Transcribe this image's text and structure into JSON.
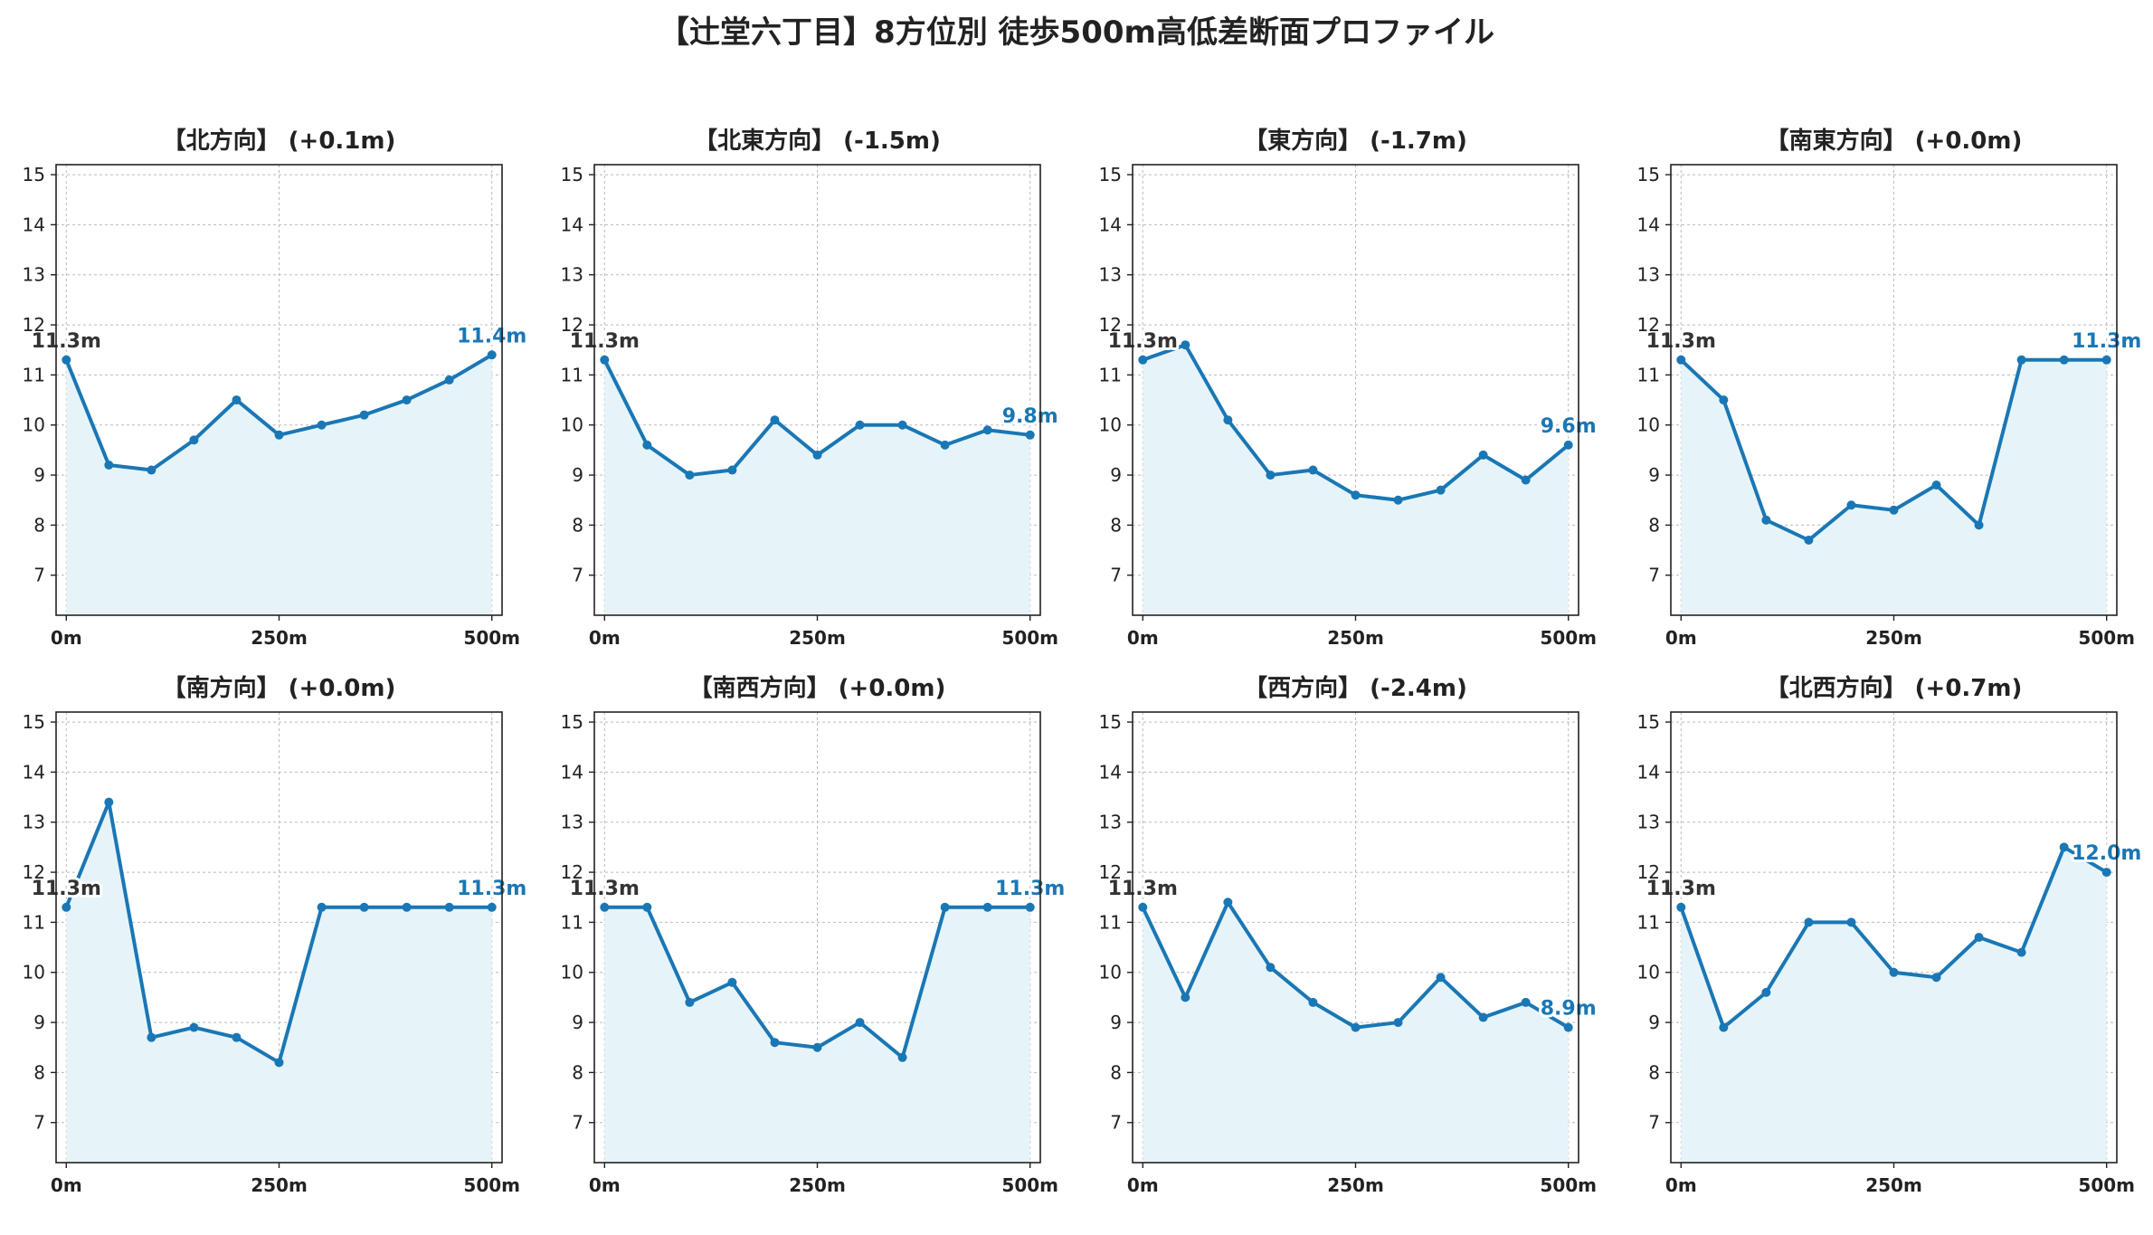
{
  "title": "【辻堂六丁目】8方位別 徒歩500m高低差断面プロファイル",
  "style": {
    "line_color": "#1a77b5",
    "fill_color": "#e6f4fa",
    "start_label_color": "#333333",
    "grid_color": "#bbbbbb"
  },
  "chart_data": [
    {
      "type": "line",
      "title": "【北方向】 (+0.1m)",
      "x": [
        0,
        50,
        100,
        150,
        200,
        250,
        300,
        350,
        400,
        450,
        500
      ],
      "y": [
        11.3,
        9.2,
        9.1,
        9.7,
        10.5,
        9.8,
        10.0,
        10.2,
        10.5,
        10.9,
        11.4
      ],
      "ylim": [
        6.2,
        15.2
      ],
      "yticks": [
        7,
        8,
        9,
        10,
        11,
        12,
        13,
        14,
        15
      ],
      "xticks": [
        0,
        250,
        500
      ],
      "xtick_labels": [
        "0m",
        "250m",
        "500m"
      ],
      "start_label": "11.3m",
      "end_label": "11.4m",
      "grid": true
    },
    {
      "type": "line",
      "title": "【北東方向】 (-1.5m)",
      "x": [
        0,
        50,
        100,
        150,
        200,
        250,
        300,
        350,
        400,
        450,
        500
      ],
      "y": [
        11.3,
        9.6,
        9.0,
        9.1,
        10.1,
        9.4,
        10.0,
        10.0,
        9.6,
        9.9,
        9.8
      ],
      "ylim": [
        6.2,
        15.2
      ],
      "yticks": [
        7,
        8,
        9,
        10,
        11,
        12,
        13,
        14,
        15
      ],
      "xticks": [
        0,
        250,
        500
      ],
      "xtick_labels": [
        "0m",
        "250m",
        "500m"
      ],
      "start_label": "11.3m",
      "end_label": "9.8m",
      "grid": true
    },
    {
      "type": "line",
      "title": "【東方向】 (-1.7m)",
      "x": [
        0,
        50,
        100,
        150,
        200,
        250,
        300,
        350,
        400,
        450,
        500
      ],
      "y": [
        11.3,
        11.6,
        10.1,
        9.0,
        9.1,
        8.6,
        8.5,
        8.7,
        9.4,
        8.9,
        9.6
      ],
      "ylim": [
        6.2,
        15.2
      ],
      "yticks": [
        7,
        8,
        9,
        10,
        11,
        12,
        13,
        14,
        15
      ],
      "xticks": [
        0,
        250,
        500
      ],
      "xtick_labels": [
        "0m",
        "250m",
        "500m"
      ],
      "start_label": "11.3m",
      "end_label": "9.6m",
      "grid": true
    },
    {
      "type": "line",
      "title": "【南東方向】 (+0.0m)",
      "x": [
        0,
        50,
        100,
        150,
        200,
        250,
        300,
        350,
        400,
        450,
        500
      ],
      "y": [
        11.3,
        10.5,
        8.1,
        7.7,
        8.4,
        8.3,
        8.8,
        8.0,
        11.3,
        11.3,
        11.3
      ],
      "ylim": [
        6.2,
        15.2
      ],
      "yticks": [
        7,
        8,
        9,
        10,
        11,
        12,
        13,
        14,
        15
      ],
      "xticks": [
        0,
        250,
        500
      ],
      "xtick_labels": [
        "0m",
        "250m",
        "500m"
      ],
      "start_label": "11.3m",
      "end_label": "11.3m",
      "grid": true
    },
    {
      "type": "line",
      "title": "【南方向】 (+0.0m)",
      "x": [
        0,
        50,
        100,
        150,
        200,
        250,
        300,
        350,
        400,
        450,
        500
      ],
      "y": [
        11.3,
        13.4,
        8.7,
        8.9,
        8.7,
        8.2,
        11.3,
        11.3,
        11.3,
        11.3,
        11.3
      ],
      "ylim": [
        6.2,
        15.2
      ],
      "yticks": [
        7,
        8,
        9,
        10,
        11,
        12,
        13,
        14,
        15
      ],
      "xticks": [
        0,
        250,
        500
      ],
      "xtick_labels": [
        "0m",
        "250m",
        "500m"
      ],
      "start_label": "11.3m",
      "end_label": "11.3m",
      "grid": true
    },
    {
      "type": "line",
      "title": "【南西方向】 (+0.0m)",
      "x": [
        0,
        50,
        100,
        150,
        200,
        250,
        300,
        350,
        400,
        450,
        500
      ],
      "y": [
        11.3,
        11.3,
        9.4,
        9.8,
        8.6,
        8.5,
        9.0,
        8.3,
        11.3,
        11.3,
        11.3
      ],
      "ylim": [
        6.2,
        15.2
      ],
      "yticks": [
        7,
        8,
        9,
        10,
        11,
        12,
        13,
        14,
        15
      ],
      "xticks": [
        0,
        250,
        500
      ],
      "xtick_labels": [
        "0m",
        "250m",
        "500m"
      ],
      "start_label": "11.3m",
      "end_label": "11.3m",
      "grid": true
    },
    {
      "type": "line",
      "title": "【西方向】 (-2.4m)",
      "x": [
        0,
        50,
        100,
        150,
        200,
        250,
        300,
        350,
        400,
        450,
        500
      ],
      "y": [
        11.3,
        9.5,
        11.4,
        10.1,
        9.4,
        8.9,
        9.0,
        9.9,
        9.1,
        9.4,
        8.9
      ],
      "ylim": [
        6.2,
        15.2
      ],
      "yticks": [
        7,
        8,
        9,
        10,
        11,
        12,
        13,
        14,
        15
      ],
      "xticks": [
        0,
        250,
        500
      ],
      "xtick_labels": [
        "0m",
        "250m",
        "500m"
      ],
      "start_label": "11.3m",
      "end_label": "8.9m",
      "grid": true
    },
    {
      "type": "line",
      "title": "【北西方向】 (+0.7m)",
      "x": [
        0,
        50,
        100,
        150,
        200,
        250,
        300,
        350,
        400,
        450,
        500
      ],
      "y": [
        11.3,
        8.9,
        9.6,
        11.0,
        11.0,
        10.0,
        9.9,
        10.7,
        10.4,
        12.5,
        12.0
      ],
      "ylim": [
        6.2,
        15.2
      ],
      "yticks": [
        7,
        8,
        9,
        10,
        11,
        12,
        13,
        14,
        15
      ],
      "xticks": [
        0,
        250,
        500
      ],
      "xtick_labels": [
        "0m",
        "250m",
        "500m"
      ],
      "start_label": "11.3m",
      "end_label": "12.0m",
      "grid": true
    }
  ]
}
